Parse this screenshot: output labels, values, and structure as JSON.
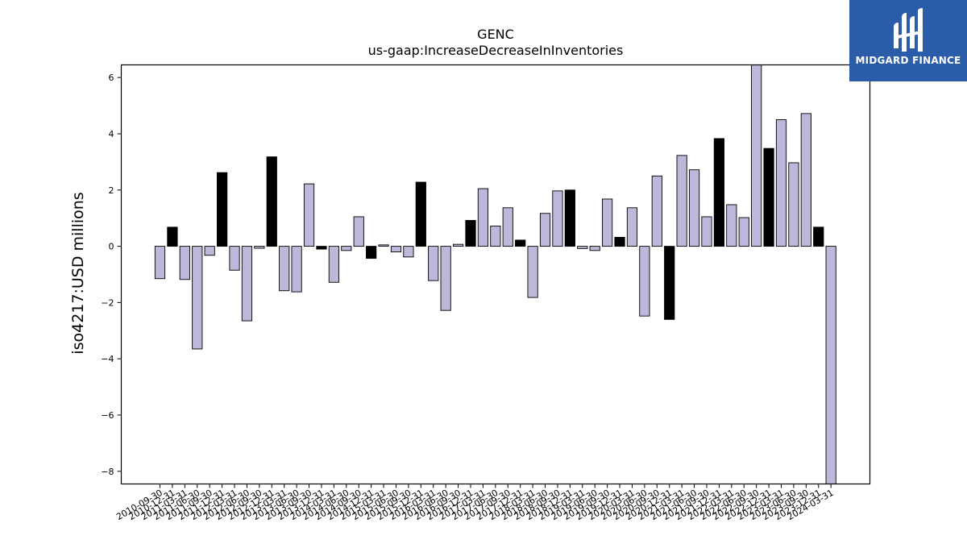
{
  "chart_data": {
    "type": "bar",
    "title": "GENC",
    "subtitle": "us-gaap:IncreaseDecreaseInInventories",
    "ylabel": "iso4217:USD  millions",
    "ylim": [
      -8.45,
      6.45
    ],
    "yticks": [
      6,
      4,
      2,
      0,
      -2,
      -4,
      -6,
      -8
    ],
    "ytick_labels": [
      "6",
      "4",
      "2",
      "0",
      "−2",
      "−4",
      "−6",
      "−8"
    ],
    "categories": [
      "2010-09-30",
      "2010-12-31",
      "2011-03-31",
      "2011-06-30",
      "2011-09-30",
      "2011-12-31",
      "2012-03-31",
      "2012-06-30",
      "2012-09-30",
      "2012-12-31",
      "2013-03-31",
      "2013-06-30",
      "2013-09-30",
      "2013-12-31",
      "2014-03-31",
      "2014-06-30",
      "2014-09-30",
      "2014-12-31",
      "2015-03-31",
      "2015-06-30",
      "2015-09-30",
      "2015-12-31",
      "2016-03-31",
      "2016-06-30",
      "2016-09-30",
      "2016-12-31",
      "2017-03-31",
      "2017-06-30",
      "2017-09-30",
      "2017-12-31",
      "2018-03-31",
      "2018-06-30",
      "2018-09-30",
      "2018-12-31",
      "2019-03-31",
      "2019-06-30",
      "2019-09-30",
      "2019-12-31",
      "2020-03-31",
      "2020-06-30",
      "2020-09-30",
      "2020-12-31",
      "2021-03-31",
      "2021-06-30",
      "2021-09-30",
      "2021-12-31",
      "2022-03-31",
      "2022-06-30",
      "2022-09-30",
      "2022-12-31",
      "2023-03-31",
      "2023-06-30",
      "2023-09-30",
      "2023-12-31",
      "2024-03-31"
    ],
    "values": [
      -1.15,
      0.68,
      -1.18,
      -3.65,
      -0.32,
      2.62,
      -0.85,
      -2.65,
      -0.07,
      3.18,
      -1.58,
      -1.62,
      2.22,
      -0.1,
      -1.28,
      -0.15,
      1.05,
      -0.43,
      0.05,
      -0.2,
      -0.38,
      2.28,
      -1.22,
      -2.28,
      0.07,
      0.92,
      2.05,
      0.72,
      1.37,
      0.22,
      -1.82,
      1.17,
      1.97,
      2.0,
      -0.08,
      -0.15,
      1.68,
      0.32,
      1.37,
      -2.48,
      2.5,
      -2.6,
      3.23,
      2.72,
      1.05,
      3.83,
      1.48,
      1.02,
      6.45,
      3.48,
      4.5,
      2.97,
      4.72,
      0.68,
      -8.45
    ],
    "highlighted": [
      false,
      true,
      false,
      false,
      false,
      true,
      false,
      false,
      false,
      true,
      false,
      false,
      false,
      true,
      false,
      false,
      false,
      true,
      false,
      false,
      false,
      true,
      false,
      false,
      false,
      true,
      false,
      false,
      false,
      true,
      false,
      false,
      false,
      true,
      false,
      false,
      false,
      true,
      false,
      false,
      false,
      true,
      false,
      false,
      false,
      true,
      false,
      false,
      false,
      true,
      false,
      false,
      false,
      true,
      false
    ],
    "colors": {
      "bar": "#bcb8d9",
      "highlight": "#000000",
      "edge": "#000000"
    },
    "grid": false,
    "legend": "none"
  },
  "logo": {
    "label": "MIDGARD FINANCE",
    "bg": "#2a5caa"
  }
}
